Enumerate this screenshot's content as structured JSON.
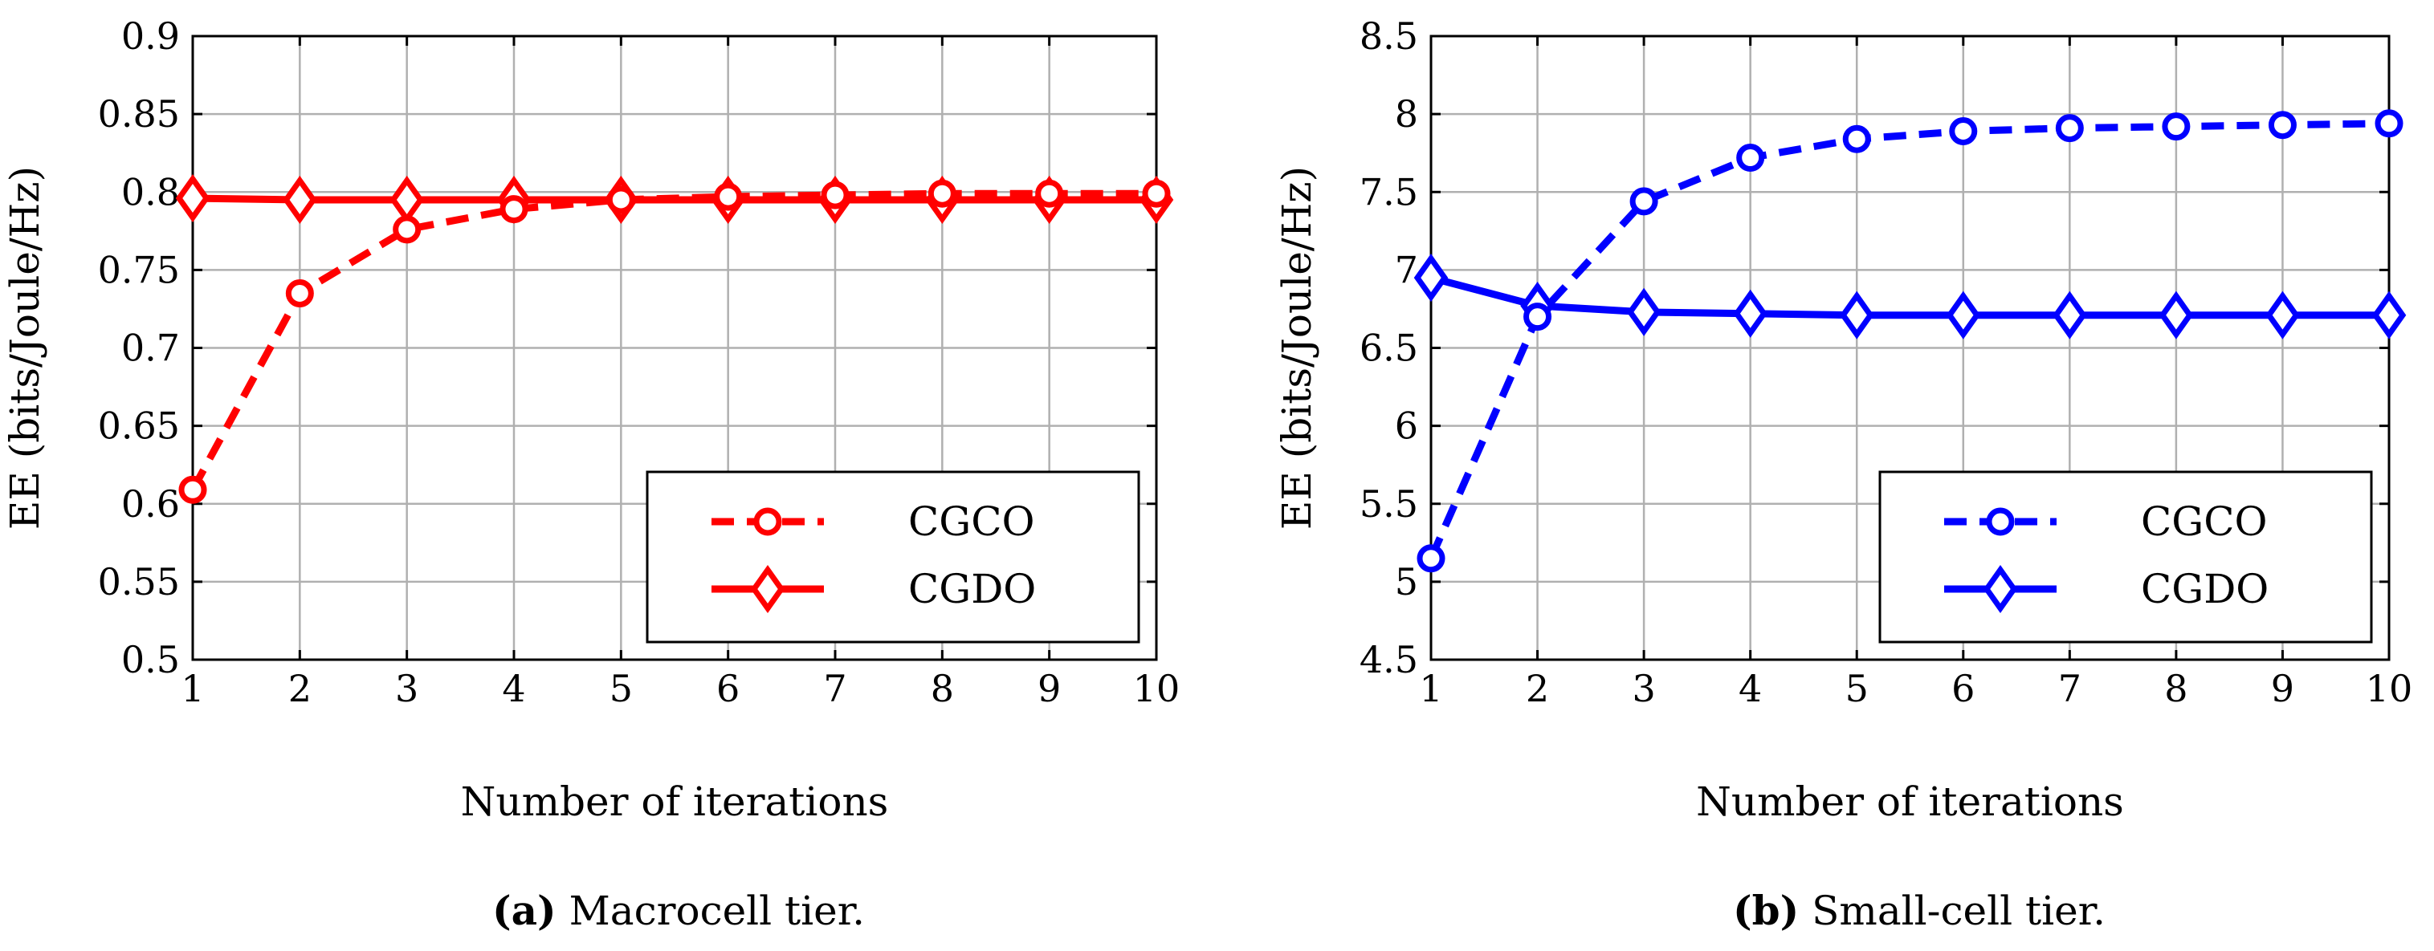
{
  "chart_data": [
    {
      "type": "line",
      "panel_tag": "(a)",
      "caption": "Macrocell tier.",
      "xlabel": "Number of iterations",
      "ylabel": "EE (bits/Joule/Hz)",
      "xlim": [
        1,
        10
      ],
      "ylim": [
        0.5,
        0.9
      ],
      "x_ticks": [
        1,
        2,
        3,
        4,
        5,
        6,
        7,
        8,
        9,
        10
      ],
      "x_tick_labels": [
        "1",
        "2",
        "3",
        "4",
        "5",
        "6",
        "7",
        "8",
        "9",
        "10"
      ],
      "y_ticks": [
        0.5,
        0.55,
        0.6,
        0.65,
        0.7,
        0.75,
        0.8,
        0.85,
        0.9
      ],
      "y_tick_labels": [
        "0.5",
        "0.55",
        "0.6",
        "0.65",
        "0.7",
        "0.75",
        "0.8",
        "0.85",
        "0.9"
      ],
      "grid": true,
      "legend_position": "bottom-right",
      "x": [
        1,
        2,
        3,
        4,
        5,
        6,
        7,
        8,
        9,
        10
      ],
      "series": [
        {
          "name": "CGCO",
          "values": [
            0.609,
            0.735,
            0.776,
            0.789,
            0.795,
            0.797,
            0.798,
            0.799,
            0.799,
            0.799
          ],
          "color": "#ff0000",
          "dash": "dashed",
          "marker": "circle"
        },
        {
          "name": "CGDO",
          "values": [
            0.796,
            0.795,
            0.795,
            0.795,
            0.795,
            0.795,
            0.795,
            0.795,
            0.795,
            0.795
          ],
          "color": "#ff0000",
          "dash": "solid",
          "marker": "diamond"
        }
      ]
    },
    {
      "type": "line",
      "panel_tag": "(b)",
      "caption": "Small-cell tier.",
      "xlabel": "Number of iterations",
      "ylabel": "EE (bits/Joule/Hz)",
      "xlim": [
        1,
        10
      ],
      "ylim": [
        4.5,
        8.5
      ],
      "x_ticks": [
        1,
        2,
        3,
        4,
        5,
        6,
        7,
        8,
        9,
        10
      ],
      "x_tick_labels": [
        "1",
        "2",
        "3",
        "4",
        "5",
        "6",
        "7",
        "8",
        "9",
        "10"
      ],
      "y_ticks": [
        4.5,
        5,
        5.5,
        6,
        6.5,
        7,
        7.5,
        8,
        8.5
      ],
      "y_tick_labels": [
        "4.5",
        "5",
        "5.5",
        "6",
        "6.5",
        "7",
        "7.5",
        "8",
        "8.5"
      ],
      "grid": true,
      "legend_position": "bottom-right",
      "x": [
        1,
        2,
        3,
        4,
        5,
        6,
        7,
        8,
        9,
        10
      ],
      "series": [
        {
          "name": "CGCO",
          "values": [
            5.15,
            6.7,
            7.44,
            7.72,
            7.84,
            7.89,
            7.91,
            7.92,
            7.93,
            7.94
          ],
          "color": "#0000ff",
          "dash": "dashed",
          "marker": "circle"
        },
        {
          "name": "CGDO",
          "values": [
            6.95,
            6.77,
            6.73,
            6.72,
            6.71,
            6.71,
            6.71,
            6.71,
            6.71,
            6.71
          ],
          "color": "#0000ff",
          "dash": "solid",
          "marker": "diamond"
        }
      ]
    }
  ]
}
